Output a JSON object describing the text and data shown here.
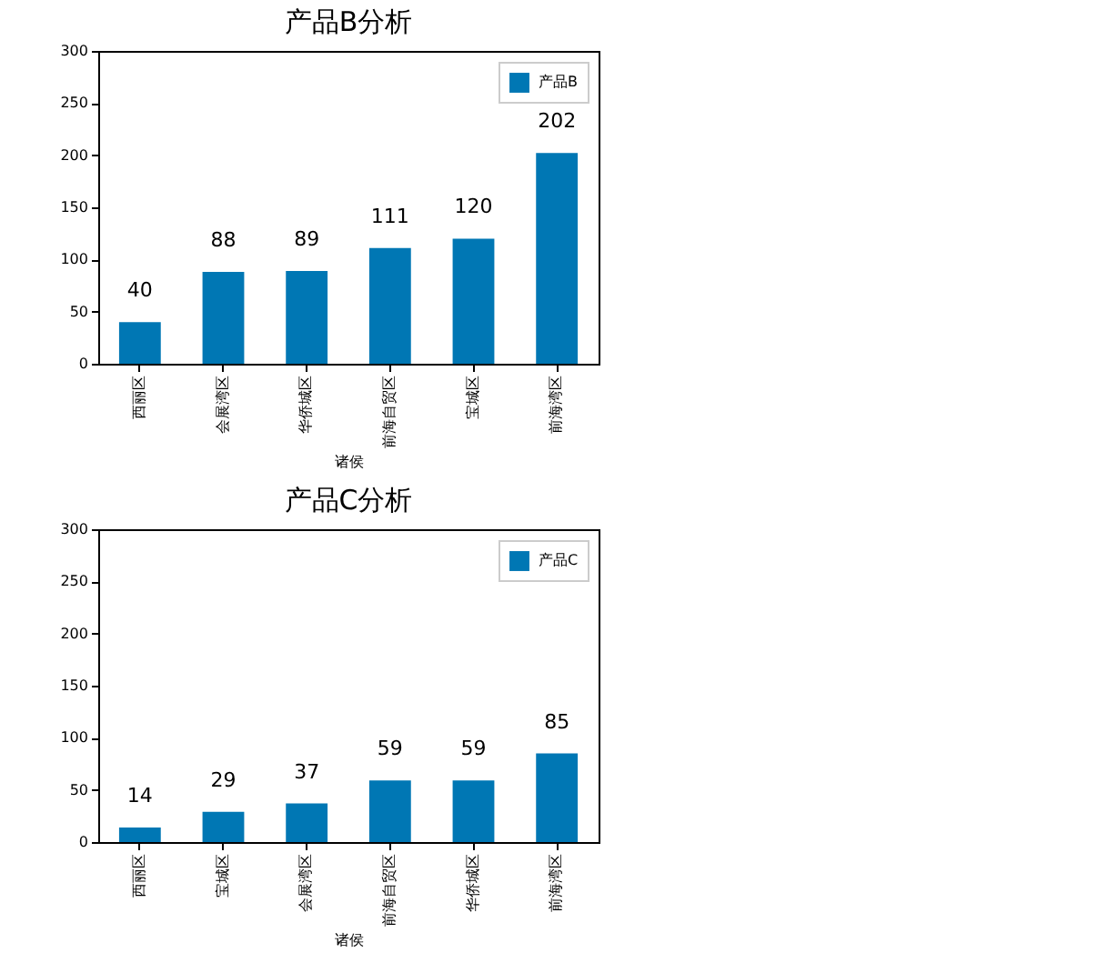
{
  "chart_data": [
    {
      "type": "bar",
      "title": "产品B分析",
      "xlabel": "诸侯",
      "categories": [
        "西丽区",
        "会展湾区",
        "华侨城区",
        "前海自贸区",
        "宝城区",
        "前海湾区"
      ],
      "series": [
        {
          "name": "产品B",
          "color": "#0077b4",
          "values": [
            40,
            88,
            89,
            111,
            120,
            202
          ]
        }
      ],
      "ylim": [
        0,
        300
      ],
      "yticks": [
        0,
        50,
        100,
        150,
        200,
        250,
        300
      ],
      "grid": false,
      "legend": "top right",
      "data_labels": true
    },
    {
      "type": "bar",
      "title": "产品C分析",
      "xlabel": "诸侯",
      "categories": [
        "西丽区",
        "宝城区",
        "会展湾区",
        "前海自贸区",
        "华侨城区",
        "前海湾区"
      ],
      "series": [
        {
          "name": "产品C",
          "color": "#0077b4",
          "values": [
            14,
            29,
            37,
            59,
            59,
            85
          ]
        }
      ],
      "ylim": [
        0,
        300
      ],
      "yticks": [
        0,
        50,
        100,
        150,
        200,
        250,
        300
      ],
      "grid": false,
      "legend": "top right",
      "data_labels": true
    }
  ]
}
